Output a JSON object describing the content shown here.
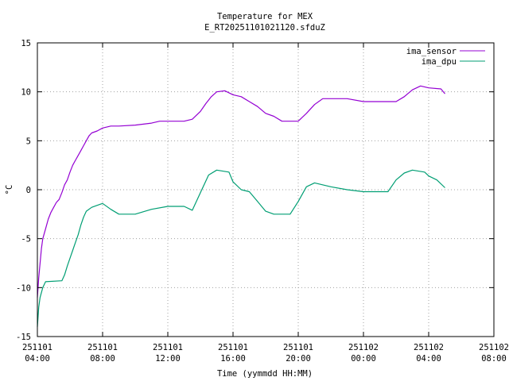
{
  "chart_data": {
    "type": "line",
    "title": "Temperature for MEX",
    "subtitle": "E_RT20251101021120.sfduZ",
    "xlabel": "Time (yymmdd HH:MM)",
    "ylabel": "°C",
    "xlim": [
      "2025-11-01 04:00",
      "2025-11-02 08:00"
    ],
    "ylim": [
      -15,
      15
    ],
    "grid": true,
    "legend": "top-right",
    "x_ticks": [
      {
        "value": "2025-11-01 04:00",
        "line1": "251101",
        "line2": "04:00"
      },
      {
        "value": "2025-11-01 08:00",
        "line1": "251101",
        "line2": "08:00"
      },
      {
        "value": "2025-11-01 12:00",
        "line1": "251101",
        "line2": "12:00"
      },
      {
        "value": "2025-11-01 16:00",
        "line1": "251101",
        "line2": "16:00"
      },
      {
        "value": "2025-11-01 20:00",
        "line1": "251101",
        "line2": "20:00"
      },
      {
        "value": "2025-11-02 00:00",
        "line1": "251102",
        "line2": "00:00"
      },
      {
        "value": "2025-11-02 04:00",
        "line1": "251102",
        "line2": "04:00"
      },
      {
        "value": "2025-11-02 08:00",
        "line1": "251102",
        "line2": "08:00"
      }
    ],
    "y_ticks": [
      -15,
      -10,
      -5,
      0,
      5,
      10,
      15
    ],
    "series": [
      {
        "name": "ima_sensor",
        "color": "#9400d3",
        "points": [
          [
            "2025-11-01 04:00",
            -11.0
          ],
          [
            "2025-11-01 04:05",
            -9.0
          ],
          [
            "2025-11-01 04:10",
            -7.5
          ],
          [
            "2025-11-01 04:15",
            -6.0
          ],
          [
            "2025-11-01 04:20",
            -5.0
          ],
          [
            "2025-11-01 04:30",
            -4.0
          ],
          [
            "2025-11-01 04:40",
            -3.0
          ],
          [
            "2025-11-01 04:50",
            -2.3
          ],
          [
            "2025-11-01 05:00",
            -1.8
          ],
          [
            "2025-11-01 05:10",
            -1.3
          ],
          [
            "2025-11-01 05:20",
            -1.0
          ],
          [
            "2025-11-01 05:30",
            -0.3
          ],
          [
            "2025-11-01 05:40",
            0.5
          ],
          [
            "2025-11-01 05:50",
            1.0
          ],
          [
            "2025-11-01 06:00",
            1.8
          ],
          [
            "2025-11-01 06:10",
            2.5
          ],
          [
            "2025-11-01 06:20",
            3.0
          ],
          [
            "2025-11-01 06:30",
            3.5
          ],
          [
            "2025-11-01 06:40",
            4.0
          ],
          [
            "2025-11-01 06:50",
            4.5
          ],
          [
            "2025-11-01 07:00",
            5.0
          ],
          [
            "2025-11-01 07:10",
            5.5
          ],
          [
            "2025-11-01 07:20",
            5.8
          ],
          [
            "2025-11-01 07:40",
            6.0
          ],
          [
            "2025-11-01 08:00",
            6.3
          ],
          [
            "2025-11-01 08:30",
            6.5
          ],
          [
            "2025-11-01 09:00",
            6.5
          ],
          [
            "2025-11-01 10:00",
            6.6
          ],
          [
            "2025-11-01 11:00",
            6.8
          ],
          [
            "2025-11-01 11:30",
            7.0
          ],
          [
            "2025-11-01 13:00",
            7.0
          ],
          [
            "2025-11-01 13:30",
            7.2
          ],
          [
            "2025-11-01 14:00",
            8.0
          ],
          [
            "2025-11-01 14:20",
            8.8
          ],
          [
            "2025-11-01 14:40",
            9.5
          ],
          [
            "2025-11-01 15:00",
            10.0
          ],
          [
            "2025-11-01 15:30",
            10.1
          ],
          [
            "2025-11-01 16:00",
            9.7
          ],
          [
            "2025-11-01 16:30",
            9.5
          ],
          [
            "2025-11-01 17:00",
            9.0
          ],
          [
            "2025-11-01 17:30",
            8.5
          ],
          [
            "2025-11-01 18:00",
            7.8
          ],
          [
            "2025-11-01 18:30",
            7.5
          ],
          [
            "2025-11-01 19:00",
            7.0
          ],
          [
            "2025-11-01 20:00",
            7.0
          ],
          [
            "2025-11-01 20:30",
            7.8
          ],
          [
            "2025-11-01 21:00",
            8.7
          ],
          [
            "2025-11-01 21:30",
            9.3
          ],
          [
            "2025-11-01 23:00",
            9.3
          ],
          [
            "2025-11-02 00:00",
            9.0
          ],
          [
            "2025-11-02 02:00",
            9.0
          ],
          [
            "2025-11-02 02:30",
            9.5
          ],
          [
            "2025-11-02 03:00",
            10.2
          ],
          [
            "2025-11-02 03:30",
            10.6
          ],
          [
            "2025-11-02 04:00",
            10.4
          ],
          [
            "2025-11-02 04:45",
            10.3
          ],
          [
            "2025-11-02 05:00",
            9.8
          ]
        ]
      },
      {
        "name": "ima_dpu",
        "color": "#009e73",
        "points": [
          [
            "2025-11-01 04:00",
            -14.0
          ],
          [
            "2025-11-01 04:05",
            -12.0
          ],
          [
            "2025-11-01 04:10",
            -11.0
          ],
          [
            "2025-11-01 04:20",
            -10.0
          ],
          [
            "2025-11-01 04:30",
            -9.4
          ],
          [
            "2025-11-01 05:30",
            -9.3
          ],
          [
            "2025-11-01 05:40",
            -8.7
          ],
          [
            "2025-11-01 05:50",
            -7.8
          ],
          [
            "2025-11-01 06:00",
            -7.0
          ],
          [
            "2025-11-01 06:10",
            -6.2
          ],
          [
            "2025-11-01 06:20",
            -5.4
          ],
          [
            "2025-11-01 06:30",
            -4.6
          ],
          [
            "2025-11-01 06:40",
            -3.6
          ],
          [
            "2025-11-01 06:50",
            -2.8
          ],
          [
            "2025-11-01 07:00",
            -2.2
          ],
          [
            "2025-11-01 07:20",
            -1.8
          ],
          [
            "2025-11-01 07:40",
            -1.6
          ],
          [
            "2025-11-01 08:00",
            -1.4
          ],
          [
            "2025-11-01 08:30",
            -2.0
          ],
          [
            "2025-11-01 09:00",
            -2.5
          ],
          [
            "2025-11-01 10:00",
            -2.5
          ],
          [
            "2025-11-01 11:00",
            -2.0
          ],
          [
            "2025-11-01 12:00",
            -1.7
          ],
          [
            "2025-11-01 13:00",
            -1.7
          ],
          [
            "2025-11-01 13:30",
            -2.1
          ],
          [
            "2025-11-01 14:00",
            -0.3
          ],
          [
            "2025-11-01 14:30",
            1.5
          ],
          [
            "2025-11-01 15:00",
            2.0
          ],
          [
            "2025-11-01 15:45",
            1.8
          ],
          [
            "2025-11-01 16:00",
            0.8
          ],
          [
            "2025-11-01 16:30",
            0.0
          ],
          [
            "2025-11-01 17:00",
            -0.2
          ],
          [
            "2025-11-01 17:30",
            -1.2
          ],
          [
            "2025-11-01 18:00",
            -2.2
          ],
          [
            "2025-11-01 18:30",
            -2.5
          ],
          [
            "2025-11-01 19:30",
            -2.5
          ],
          [
            "2025-11-01 20:00",
            -1.2
          ],
          [
            "2025-11-01 20:30",
            0.3
          ],
          [
            "2025-11-01 21:00",
            0.7
          ],
          [
            "2025-11-01 22:00",
            0.3
          ],
          [
            "2025-11-01 23:00",
            0.0
          ],
          [
            "2025-11-02 00:00",
            -0.2
          ],
          [
            "2025-11-02 01:30",
            -0.2
          ],
          [
            "2025-11-02 02:00",
            1.0
          ],
          [
            "2025-11-02 02:30",
            1.7
          ],
          [
            "2025-11-02 03:00",
            2.0
          ],
          [
            "2025-11-02 03:45",
            1.8
          ],
          [
            "2025-11-02 04:00",
            1.4
          ],
          [
            "2025-11-02 04:30",
            1.0
          ],
          [
            "2025-11-02 05:00",
            0.2
          ]
        ]
      }
    ]
  }
}
